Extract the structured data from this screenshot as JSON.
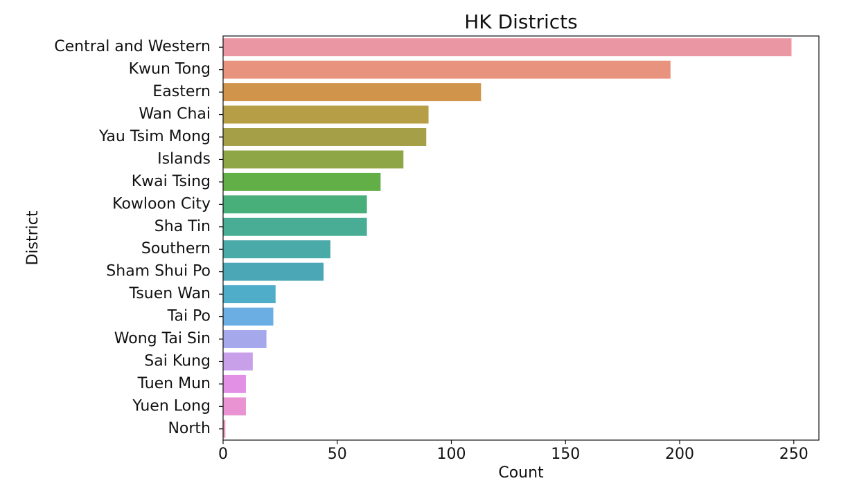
{
  "chart_data": {
    "type": "bar",
    "orientation": "horizontal",
    "title": "HK Districts",
    "x_label": "Count",
    "y_label": "District",
    "categories": [
      "Central and Western",
      "Kwun Tong",
      "Eastern",
      "Wan Chai",
      "Yau Tsim Mong",
      "Islands",
      "Kwai Tsing",
      "Kowloon City",
      "Sha Tin",
      "Southern",
      "Sham Shui Po",
      "Tsuen Wan",
      "Tai Po",
      "Wong Tai Sin",
      "Sai Kung",
      "Tuen Mun",
      "Yuen Long",
      "North"
    ],
    "values": [
      249,
      196,
      113,
      90,
      89,
      79,
      69,
      63,
      63,
      47,
      44,
      23,
      22,
      19,
      13,
      10,
      10,
      1
    ],
    "colors": [
      "#ea96a3",
      "#e8937e",
      "#d0944a",
      "#b59e46",
      "#a59f47",
      "#8fa647",
      "#62ae47",
      "#48ae7a",
      "#49ad95",
      "#4aaaa8",
      "#4ba6b6",
      "#50adc9",
      "#6aaee4",
      "#a5a9ec",
      "#c8a0ea",
      "#e190e6",
      "#ea93d3",
      "#ea95bb"
    ],
    "xlim": [
      0,
      261
    ],
    "xticks": [
      0,
      50,
      100,
      150,
      200,
      250
    ],
    "grid": false
  }
}
